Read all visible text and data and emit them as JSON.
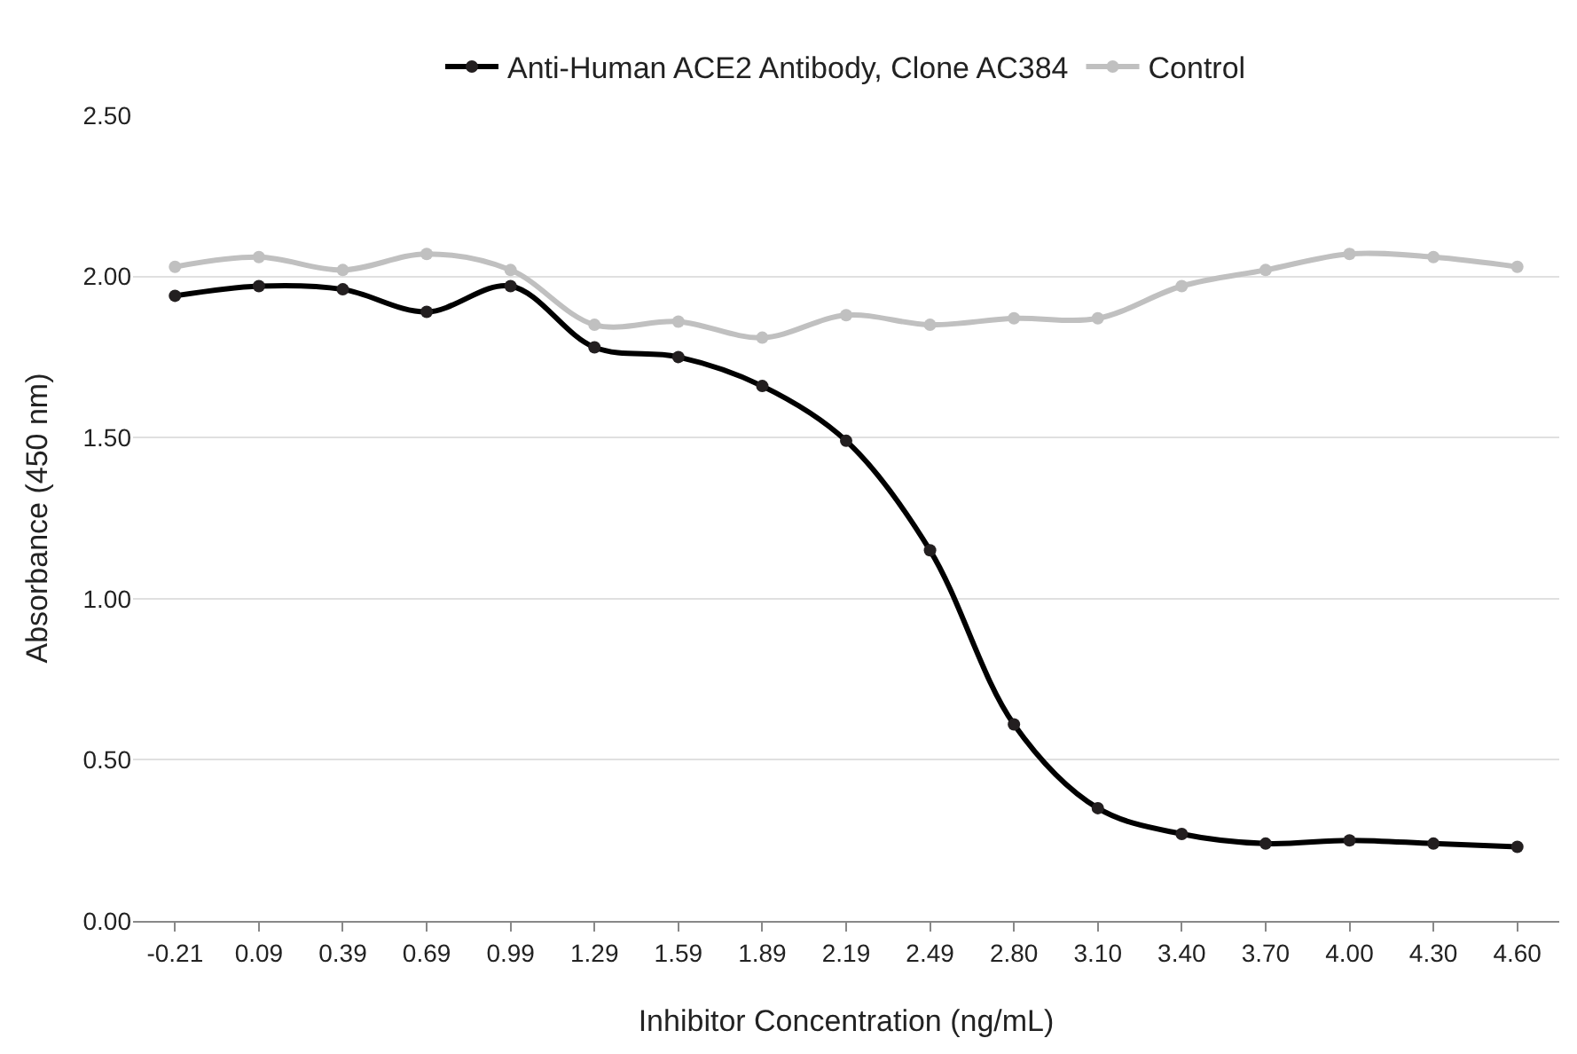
{
  "chart_data": {
    "type": "line",
    "xlabel": "Inhibitor Concentration (ng/mL)",
    "ylabel": "Absorbance (450 nm)",
    "categories": [
      "-0.21",
      "0.09",
      "0.39",
      "0.69",
      "0.99",
      "1.29",
      "1.59",
      "1.89",
      "2.19",
      "2.49",
      "2.80",
      "3.10",
      "3.40",
      "3.70",
      "4.00",
      "4.30",
      "4.60"
    ],
    "series": [
      {
        "name": "Anti-Human ACE2 Antibody, Clone AC384",
        "color": "#000000",
        "values": [
          1.94,
          1.97,
          1.96,
          1.89,
          1.97,
          1.78,
          1.75,
          1.66,
          1.49,
          1.15,
          0.61,
          0.35,
          0.27,
          0.24,
          0.25,
          0.24,
          0.23
        ]
      },
      {
        "name": "Control",
        "color": "#c0c0c0",
        "values": [
          2.03,
          2.06,
          2.02,
          2.07,
          2.02,
          1.85,
          1.86,
          1.81,
          1.88,
          1.85,
          1.87,
          1.87,
          1.97,
          2.02,
          2.07,
          2.06,
          2.03
        ]
      }
    ],
    "ylim": [
      0,
      2.5
    ],
    "yticks": [
      {
        "value": 0,
        "label": "0.00"
      },
      {
        "value": 0.5,
        "label": "0.50"
      },
      {
        "value": 1,
        "label": "1.00"
      },
      {
        "value": 1.5,
        "label": "1.50"
      },
      {
        "value": 2,
        "label": "2.00"
      },
      {
        "value": 2.5,
        "label": "2.50"
      }
    ],
    "grid": "y",
    "legend": "top",
    "marker": "circle",
    "line_style": "solid"
  }
}
